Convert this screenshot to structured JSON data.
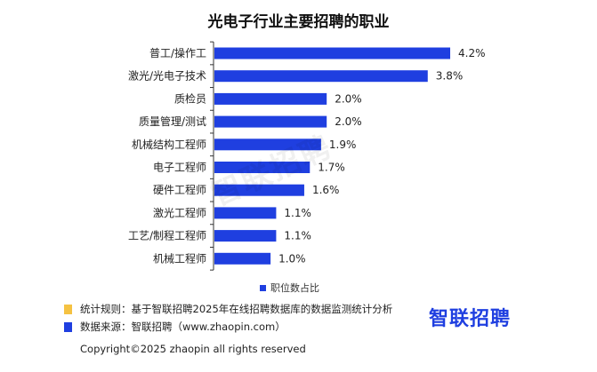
{
  "chart_data": {
    "type": "bar",
    "orientation": "horizontal",
    "title": "光电子行业主要招聘的职业",
    "categories": [
      "普工/操作工",
      "激光/光电子技术",
      "质检员",
      "质量管理/测试",
      "机械结构工程师",
      "电子工程师",
      "硬件工程师",
      "激光工程师",
      "工艺/制程工程师",
      "机械工程师"
    ],
    "values": [
      4.2,
      3.8,
      2.0,
      2.0,
      1.9,
      1.7,
      1.6,
      1.1,
      1.1,
      1.0
    ],
    "value_labels": [
      "4.2%",
      "3.8%",
      "2.0%",
      "2.0%",
      "1.9%",
      "1.7%",
      "1.6%",
      "1.1%",
      "1.1%",
      "1.0%"
    ],
    "xlim": [
      0,
      4.2
    ],
    "legend": "职位数占比",
    "bar_color": "#1f3fe0"
  },
  "watermark": "智联招聘",
  "notes": {
    "rule": "统计规则：基于智联招聘2025年在线招聘数据库的数据监测统计分析",
    "source": "数据来源：智联招聘（www.zhaopin.com）",
    "rule_color": "#f5c242",
    "source_color": "#1f3fe0"
  },
  "logo": "智联招聘",
  "copyright": "Copyright©2025 zhaopin all rights reserved"
}
